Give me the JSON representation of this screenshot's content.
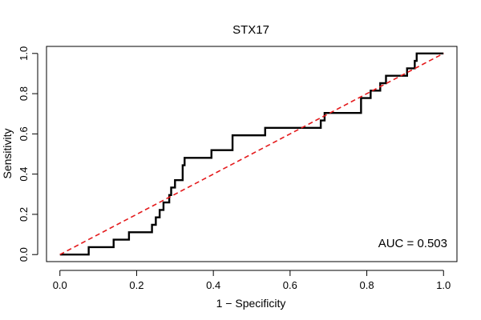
{
  "chart_data": {
    "type": "line",
    "title": "STX17",
    "xlabel": "1 − Specificity",
    "ylabel": "Sensitivity",
    "xlim": [
      -0.035,
      1.035
    ],
    "ylim": [
      -0.035,
      1.035
    ],
    "x_ticks": [
      "0.0",
      "0.2",
      "0.4",
      "0.6",
      "0.8",
      "1.0"
    ],
    "y_ticks": [
      "0.0",
      "0.2",
      "0.4",
      "0.6",
      "0.8",
      "1.0"
    ],
    "grid": false,
    "annotation": "AUC = 0.503",
    "series": [
      {
        "name": "",
        "color": "#000000",
        "style": "step",
        "x": [
          0,
          0.075,
          0.075,
          0.14,
          0.14,
          0.18,
          0.18,
          0.24,
          0.24,
          0.25,
          0.25,
          0.26,
          0.26,
          0.27,
          0.27,
          0.285,
          0.285,
          0.29,
          0.29,
          0.3,
          0.3,
          0.32,
          0.32,
          0.325,
          0.325,
          0.335,
          0.335,
          0.395,
          0.395,
          0.45,
          0.45,
          0.535,
          0.535,
          0.68,
          0.68,
          0.69,
          0.69,
          0.7,
          0.7,
          0.785,
          0.785,
          0.81,
          0.81,
          0.815,
          0.815,
          0.835,
          0.835,
          0.85,
          0.85,
          0.885,
          0.885,
          0.905,
          0.905,
          0.925,
          0.925,
          0.93,
          0.93,
          0.935,
          0.935,
          1.0
        ],
        "y": [
          0,
          0,
          0.037,
          0.037,
          0.074,
          0.074,
          0.111,
          0.111,
          0.148,
          0.148,
          0.185,
          0.185,
          0.222,
          0.222,
          0.259,
          0.259,
          0.296,
          0.296,
          0.333,
          0.333,
          0.37,
          0.37,
          0.444,
          0.444,
          0.481,
          0.481,
          0.481,
          0.481,
          0.519,
          0.519,
          0.593,
          0.593,
          0.63,
          0.63,
          0.667,
          0.667,
          0.704,
          0.704,
          0.704,
          0.704,
          0.778,
          0.778,
          0.815,
          0.815,
          0.815,
          0.815,
          0.852,
          0.852,
          0.889,
          0.889,
          0.889,
          0.889,
          0.926,
          0.926,
          0.963,
          0.963,
          1.0,
          1.0,
          1.0,
          1.0
        ]
      },
      {
        "name": "",
        "color": "#e41a1c",
        "style": "dashed",
        "x": [
          0,
          1
        ],
        "y": [
          0,
          1
        ]
      }
    ]
  }
}
